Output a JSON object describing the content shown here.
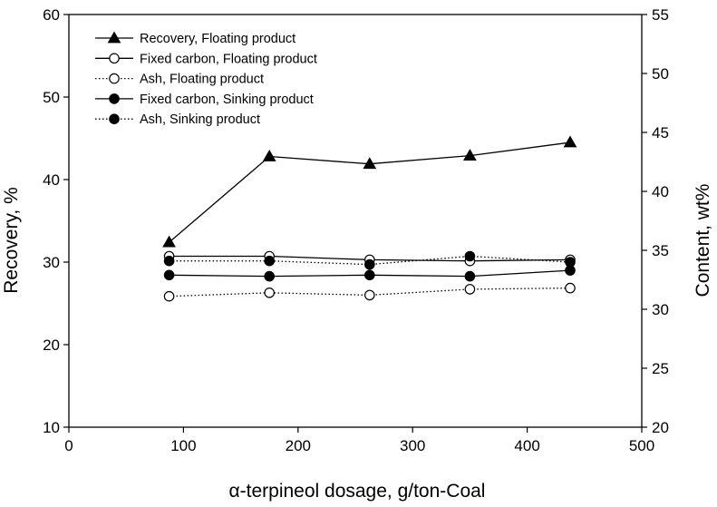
{
  "chart_data": {
    "type": "line",
    "title": "",
    "xlabel": "α-terpineol dosage, g/ton-Coal",
    "ylabel_left": "Recovery, %",
    "ylabel_right": "Content, wt%",
    "xlim": [
      0,
      500
    ],
    "ylim_left": [
      10,
      60
    ],
    "ylim_right": [
      20,
      55
    ],
    "x_ticks": [
      "0",
      "100",
      "200",
      "300",
      "400",
      "500"
    ],
    "y_left_ticks": [
      "10",
      "20",
      "30",
      "40",
      "50",
      "60"
    ],
    "y_right_ticks": [
      "20",
      "25",
      "30",
      "35",
      "40",
      "45",
      "50",
      "55"
    ],
    "grid": false,
    "legend_position": "top-left",
    "series": [
      {
        "name": "Recovery, Floating product",
        "axis": "left",
        "marker": "triangle-filled",
        "line": "solid",
        "x": [
          87.5,
          175,
          262.5,
          350,
          437.5
        ],
        "y": [
          32.4,
          42.8,
          41.9,
          42.9,
          44.5
        ]
      },
      {
        "name": "Fixed carbon, Floating product",
        "axis": "right",
        "marker": "circle-open",
        "line": "solid",
        "x": [
          87.5,
          175,
          262.5,
          350,
          437.5
        ],
        "y": [
          34.5,
          34.5,
          34.2,
          34.1,
          34.2
        ]
      },
      {
        "name": "Ash, Floating product",
        "axis": "right",
        "marker": "circle-open",
        "line": "dotted",
        "x": [
          87.5,
          175,
          262.5,
          350,
          437.5
        ],
        "y": [
          31.1,
          31.4,
          31.2,
          31.7,
          31.8
        ]
      },
      {
        "name": "Fixed carbon, Sinking product",
        "axis": "right",
        "marker": "circle-filled",
        "line": "solid",
        "x": [
          87.5,
          175,
          262.5,
          350,
          437.5
        ],
        "y": [
          32.9,
          32.8,
          32.9,
          32.8,
          33.3
        ]
      },
      {
        "name": "Ash, Sinking product",
        "axis": "right",
        "marker": "circle-filled",
        "line": "dotted",
        "x": [
          87.5,
          175,
          262.5,
          350,
          437.5
        ],
        "y": [
          34.1,
          34.1,
          33.8,
          34.5,
          34.0
        ]
      }
    ]
  }
}
